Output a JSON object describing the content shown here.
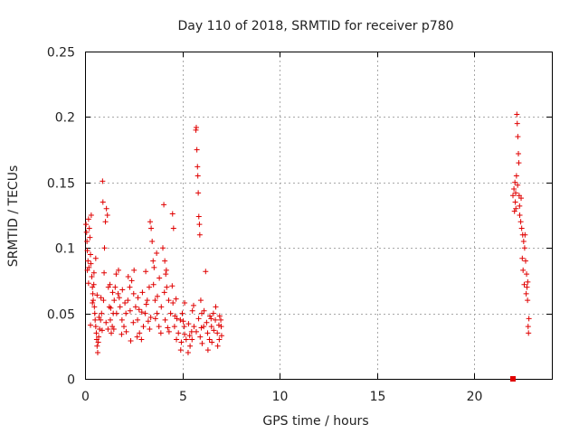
{
  "chart_data": {
    "type": "scatter",
    "title": "Day 110 of 2018, SRMTID for receiver p780",
    "xlabel": "GPS time / hours",
    "ylabel": "SRMTID / TECUs",
    "xlim": [
      0,
      24
    ],
    "ylim": [
      0,
      0.25
    ],
    "x_ticks": [
      0,
      5,
      10,
      15,
      20
    ],
    "x_tick_labels": [
      "0",
      "5",
      "10",
      "15",
      "20"
    ],
    "y_ticks": [
      0,
      0.05,
      0.1,
      0.15,
      0.2,
      0.25
    ],
    "y_tick_labels": [
      "0",
      "0.05",
      "0.1",
      "0.15",
      "0.2",
      "0.25"
    ],
    "grid": true,
    "marker": "plus",
    "color": "#e00000",
    "series": [
      {
        "name": "SRMTID",
        "points": [
          [
            0.05,
            0.118
          ],
          [
            0.08,
            0.112
          ],
          [
            0.1,
            0.105
          ],
          [
            0.12,
            0.098
          ],
          [
            0.15,
            0.09
          ],
          [
            0.18,
            0.122
          ],
          [
            0.2,
            0.085
          ],
          [
            0.22,
            0.115
          ],
          [
            0.25,
            0.108
          ],
          [
            0.28,
            0.095
          ],
          [
            0.3,
            0.088
          ],
          [
            0.32,
            0.125
          ],
          [
            0.35,
            0.078
          ],
          [
            0.38,
            0.07
          ],
          [
            0.4,
            0.065
          ],
          [
            0.42,
            0.06
          ],
          [
            0.45,
            0.072
          ],
          [
            0.48,
            0.055
          ],
          [
            0.5,
            0.05
          ],
          [
            0.52,
            0.045
          ],
          [
            0.55,
            0.04
          ],
          [
            0.58,
            0.035
          ],
          [
            0.6,
            0.03
          ],
          [
            0.62,
            0.025
          ],
          [
            0.65,
            0.02
          ],
          [
            0.68,
            0.028
          ],
          [
            0.7,
            0.032
          ],
          [
            0.75,
            0.038
          ],
          [
            0.8,
            0.045
          ],
          [
            0.85,
            0.05
          ],
          [
            0.9,
            0.151
          ],
          [
            0.92,
            0.135
          ],
          [
            0.95,
            0.06
          ],
          [
            1.0,
            0.1
          ],
          [
            1.05,
            0.12
          ],
          [
            1.1,
            0.13
          ],
          [
            1.15,
            0.125
          ],
          [
            1.2,
            0.07
          ],
          [
            1.25,
            0.055
          ],
          [
            1.3,
            0.045
          ],
          [
            1.35,
            0.035
          ],
          [
            1.4,
            0.04
          ],
          [
            1.45,
            0.05
          ],
          [
            1.5,
            0.06
          ],
          [
            1.55,
            0.07
          ],
          [
            1.6,
            0.08
          ],
          [
            1.7,
            0.065
          ],
          [
            1.8,
            0.055
          ],
          [
            1.9,
            0.045
          ],
          [
            2.0,
            0.04
          ],
          [
            2.1,
            0.05
          ],
          [
            2.2,
            0.06
          ],
          [
            2.3,
            0.07
          ],
          [
            2.4,
            0.075
          ],
          [
            2.5,
            0.065
          ],
          [
            2.6,
            0.055
          ],
          [
            2.7,
            0.045
          ],
          [
            2.8,
            0.035
          ],
          [
            2.9,
            0.03
          ],
          [
            3.0,
            0.04
          ],
          [
            3.1,
            0.05
          ],
          [
            3.2,
            0.06
          ],
          [
            3.3,
            0.07
          ],
          [
            3.35,
            0.12
          ],
          [
            3.4,
            0.115
          ],
          [
            3.45,
            0.105
          ],
          [
            3.5,
            0.09
          ],
          [
            3.55,
            0.085
          ],
          [
            3.6,
            0.06
          ],
          [
            3.7,
            0.05
          ],
          [
            3.8,
            0.04
          ],
          [
            3.9,
            0.035
          ],
          [
            4.0,
            0.1
          ],
          [
            4.05,
            0.133
          ],
          [
            4.1,
            0.09
          ],
          [
            4.15,
            0.08
          ],
          [
            4.2,
            0.07
          ],
          [
            4.3,
            0.06
          ],
          [
            4.4,
            0.05
          ],
          [
            4.5,
            0.126
          ],
          [
            4.55,
            0.115
          ],
          [
            4.6,
            0.04
          ],
          [
            4.7,
            0.03
          ],
          [
            4.8,
            0.035
          ],
          [
            4.9,
            0.045
          ],
          [
            5.0,
            0.05
          ],
          [
            5.1,
            0.04
          ],
          [
            5.2,
            0.03
          ],
          [
            5.3,
            0.02
          ],
          [
            5.4,
            0.025
          ],
          [
            5.5,
            0.03
          ],
          [
            5.6,
            0.04
          ],
          [
            5.7,
            0.19
          ],
          [
            5.72,
            0.192
          ],
          [
            5.75,
            0.175
          ],
          [
            5.78,
            0.162
          ],
          [
            5.8,
            0.155
          ],
          [
            5.82,
            0.142
          ],
          [
            5.85,
            0.124
          ],
          [
            5.88,
            0.118
          ],
          [
            5.9,
            0.11
          ],
          [
            5.95,
            0.06
          ],
          [
            6.0,
            0.05
          ],
          [
            6.1,
            0.04
          ],
          [
            6.2,
            0.082
          ],
          [
            6.3,
            0.035
          ],
          [
            6.4,
            0.03
          ],
          [
            6.5,
            0.04
          ],
          [
            6.6,
            0.05
          ],
          [
            6.7,
            0.045
          ],
          [
            6.8,
            0.035
          ],
          [
            6.9,
            0.03
          ],
          [
            7.0,
            0.04
          ],
          [
            0.12,
            0.083
          ],
          [
            0.38,
            0.058
          ],
          [
            0.62,
            0.064
          ],
          [
            0.82,
            0.062
          ],
          [
            1.08,
            0.043
          ],
          [
            1.28,
            0.072
          ],
          [
            1.48,
            0.038
          ],
          [
            1.72,
            0.083
          ],
          [
            1.92,
            0.068
          ],
          [
            2.12,
            0.036
          ],
          [
            2.32,
            0.052
          ],
          [
            2.52,
            0.083
          ],
          [
            2.72,
            0.062
          ],
          [
            2.92,
            0.051
          ],
          [
            3.12,
            0.082
          ],
          [
            3.32,
            0.038
          ],
          [
            3.52,
            0.072
          ],
          [
            3.72,
            0.063
          ],
          [
            3.92,
            0.055
          ],
          [
            4.12,
            0.045
          ],
          [
            4.32,
            0.036
          ],
          [
            4.52,
            0.058
          ],
          [
            4.72,
            0.046
          ],
          [
            4.92,
            0.022
          ],
          [
            5.12,
            0.058
          ],
          [
            5.32,
            0.042
          ],
          [
            5.52,
            0.052
          ],
          [
            5.72,
            0.036
          ],
          [
            5.92,
            0.032
          ],
          [
            6.12,
            0.052
          ],
          [
            6.32,
            0.022
          ],
          [
            6.52,
            0.028
          ],
          [
            6.72,
            0.055
          ],
          [
            6.92,
            0.048
          ],
          [
            0.28,
            0.041
          ],
          [
            0.72,
            0.047
          ],
          [
            1.18,
            0.038
          ],
          [
            1.62,
            0.05
          ],
          [
            2.05,
            0.058
          ],
          [
            2.48,
            0.043
          ],
          [
            2.95,
            0.066
          ],
          [
            3.38,
            0.047
          ],
          [
            3.82,
            0.077
          ],
          [
            4.25,
            0.039
          ],
          [
            4.68,
            0.061
          ],
          [
            5.12,
            0.034
          ],
          [
            5.58,
            0.056
          ],
          [
            6.02,
            0.027
          ],
          [
            6.48,
            0.046
          ],
          [
            6.88,
            0.041
          ],
          [
            7.02,
            0.033
          ],
          [
            0.55,
            0.092
          ],
          [
            0.98,
            0.081
          ],
          [
            1.42,
            0.066
          ],
          [
            1.88,
            0.034
          ],
          [
            2.35,
            0.029
          ],
          [
            2.78,
            0.053
          ],
          [
            3.25,
            0.044
          ],
          [
            3.68,
            0.096
          ],
          [
            4.18,
            0.083
          ],
          [
            4.62,
            0.048
          ],
          [
            5.05,
            0.044
          ],
          [
            5.48,
            0.036
          ],
          [
            5.98,
            0.039
          ],
          [
            6.42,
            0.048
          ],
          [
            6.82,
            0.025
          ],
          [
            0.18,
            0.073
          ],
          [
            0.46,
            0.081
          ],
          [
            0.88,
            0.037
          ],
          [
            1.32,
            0.054
          ],
          [
            1.76,
            0.062
          ],
          [
            2.22,
            0.078
          ],
          [
            2.68,
            0.032
          ],
          [
            3.15,
            0.057
          ],
          [
            3.62,
            0.046
          ],
          [
            4.08,
            0.066
          ],
          [
            4.48,
            0.071
          ],
          [
            4.95,
            0.028
          ],
          [
            5.38,
            0.033
          ],
          [
            5.84,
            0.046
          ],
          [
            6.25,
            0.043
          ],
          [
            6.62,
            0.037
          ],
          [
            6.98,
            0.045
          ],
          [
            22.0,
            0.14
          ],
          [
            22.05,
            0.145
          ],
          [
            22.1,
            0.15
          ],
          [
            22.12,
            0.135
          ],
          [
            22.15,
            0.13
          ],
          [
            22.18,
            0.155
          ],
          [
            22.2,
            0.202
          ],
          [
            22.22,
            0.195
          ],
          [
            22.25,
            0.185
          ],
          [
            22.28,
            0.172
          ],
          [
            22.3,
            0.165
          ],
          [
            22.32,
            0.14
          ],
          [
            22.35,
            0.125
          ],
          [
            22.4,
            0.12
          ],
          [
            22.45,
            0.115
          ],
          [
            22.5,
            0.11
          ],
          [
            22.55,
            0.105
          ],
          [
            22.6,
            0.1
          ],
          [
            22.65,
            0.09
          ],
          [
            22.7,
            0.08
          ],
          [
            22.72,
            0.07
          ],
          [
            22.75,
            0.06
          ],
          [
            22.78,
            0.04
          ],
          [
            22.8,
            0.035
          ],
          [
            22.08,
            0.128
          ],
          [
            22.14,
            0.142
          ],
          [
            22.24,
            0.148
          ],
          [
            22.34,
            0.132
          ],
          [
            22.42,
            0.138
          ],
          [
            22.48,
            0.092
          ],
          [
            22.52,
            0.083
          ],
          [
            22.58,
            0.072
          ],
          [
            22.62,
            0.11
          ],
          [
            22.68,
            0.065
          ],
          [
            22.76,
            0.074
          ],
          [
            22.82,
            0.046
          ]
        ]
      },
      {
        "name": "marker-at-zero",
        "points": [
          [
            22.0,
            0.0
          ]
        ],
        "marker": "square"
      }
    ]
  }
}
